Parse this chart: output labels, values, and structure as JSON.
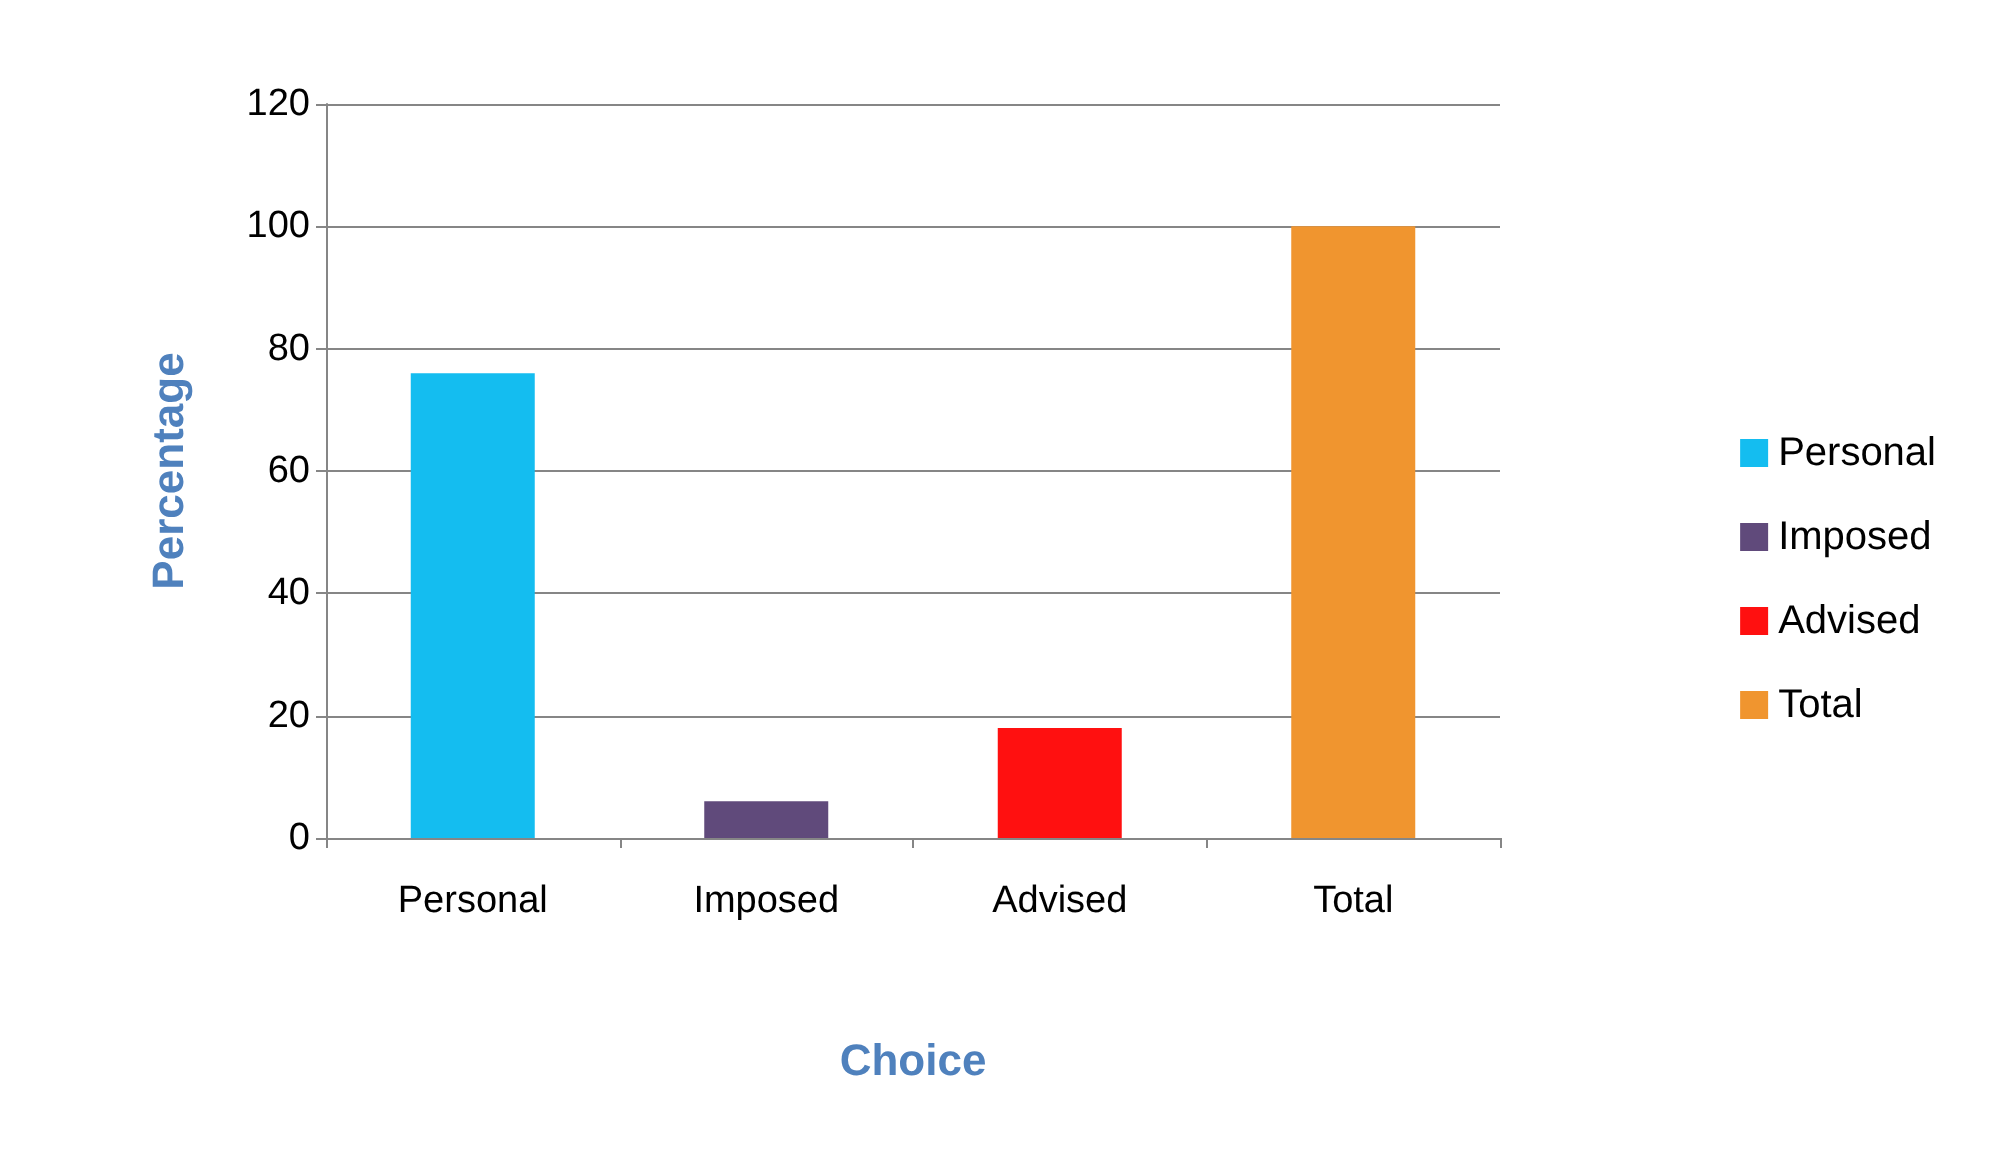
{
  "chart_data": {
    "type": "bar",
    "xlabel": "Choice",
    "ylabel": "Percentage",
    "categories": [
      "Personal",
      "Imposed",
      "Advised",
      "Total"
    ],
    "series": [
      {
        "name": "Personal",
        "color": "#14bdf0",
        "values": [
          76,
          null,
          null,
          null
        ]
      },
      {
        "name": "Imposed",
        "color": "#604a7b",
        "values": [
          null,
          6,
          null,
          null
        ]
      },
      {
        "name": "Advised",
        "color": "#ff1010",
        "values": [
          null,
          null,
          18,
          null
        ]
      },
      {
        "name": "Total",
        "color": "#f0952f",
        "values": [
          null,
          null,
          null,
          100
        ]
      }
    ],
    "ylim": [
      0,
      120
    ],
    "yticks": [
      0,
      20,
      40,
      60,
      80,
      100,
      120
    ],
    "grid": "y",
    "legend": "right"
  }
}
